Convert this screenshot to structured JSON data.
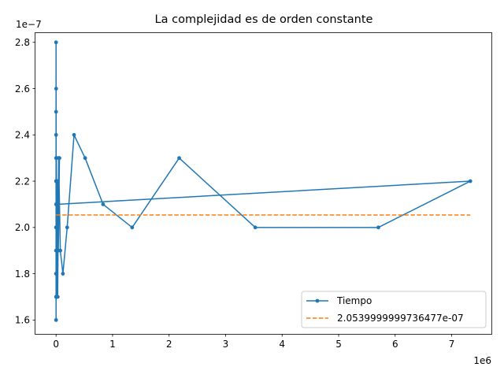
{
  "chart_data": {
    "type": "line",
    "title": "La complejidad es de orden constante",
    "xlabel": "",
    "ylabel": "",
    "x_offset_text": "1e6",
    "y_offset_text": "1e−7",
    "x_scale": 1000000,
    "y_scale": 1e-07,
    "xlim": [
      -365000,
      7710000
    ],
    "ylim": [
      1.54e-07,
      2.84e-07
    ],
    "x_ticks": [
      0,
      1000000,
      2000000,
      3000000,
      4000000,
      5000000,
      6000000,
      7000000
    ],
    "x_tick_labels": [
      "0",
      "1",
      "2",
      "3",
      "4",
      "5",
      "6",
      "7"
    ],
    "y_ticks": [
      1.6e-07,
      1.8e-07,
      2e-07,
      2.2e-07,
      2.4e-07,
      2.6e-07,
      2.8e-07
    ],
    "y_tick_labels": [
      "1.6",
      "1.8",
      "2.0",
      "2.2",
      "2.4",
      "2.6",
      "2.8"
    ],
    "grid": false,
    "legend_position": "lower right",
    "series": [
      {
        "name": "Tiempo",
        "color": "#1f77b4",
        "style": "solid",
        "marker": "circle",
        "x": [
          1,
          2,
          3,
          5,
          8,
          13,
          21,
          34,
          55,
          89,
          144,
          233,
          377,
          610,
          987,
          1597,
          2584,
          4181,
          6765,
          10946,
          17711,
          28657,
          46368,
          75025,
          121393,
          196418,
          317811,
          514229,
          832040,
          1346269,
          2178309,
          3524578,
          5702887,
          7330000,
          11000,
          17000,
          26000,
          40000,
          60000
        ],
        "y": [
          2e-07,
          1.8e-07,
          2.8e-07,
          1.9e-07,
          2.5e-07,
          1.7e-07,
          2.4e-07,
          1.6e-07,
          2.2e-07,
          2e-07,
          2.3e-07,
          1.9e-07,
          2.1e-07,
          1.8e-07,
          2.6e-07,
          2.2e-07,
          1.7e-07,
          2e-07,
          2.3e-07,
          1.9e-07,
          2.2e-07,
          1.7e-07,
          2.3e-07,
          1.9e-07,
          1.8e-07,
          2e-07,
          2.4e-07,
          2.3e-07,
          2.1e-07,
          2e-07,
          2.3e-07,
          2e-07,
          2e-07,
          2.2e-07,
          2.1e-07,
          1.7e-07,
          2.2e-07,
          1.9e-07,
          2.3e-07
        ]
      },
      {
        "name": "2.0539999999736477e-07",
        "color": "#ff7f0e",
        "style": "dashed",
        "marker": "none",
        "x": [
          0,
          7330000
        ],
        "y": [
          2.0539999999736477e-07,
          2.0539999999736477e-07
        ]
      }
    ]
  }
}
